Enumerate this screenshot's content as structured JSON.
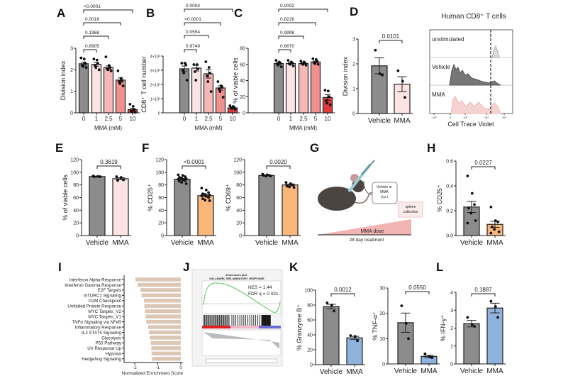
{
  "panel_letters": [
    "A",
    "B",
    "C",
    "D",
    "E",
    "F",
    "G",
    "H",
    "I",
    "J",
    "K",
    "L"
  ],
  "colors": {
    "vehicle": "#8c8c8c",
    "mma_pink": "#fde3e3",
    "mma_orange": "#f9b77a",
    "mma_blue": "#8fb3dc",
    "gsea_bar": "#dcc6b4",
    "dose": [
      "#8c8c8c",
      "#fde3e3",
      "#f8b7b7",
      "#f28f8f",
      "#e0393c"
    ]
  },
  "chart_data": [
    {
      "id": "A",
      "type": "bar",
      "ylabel": "Division index",
      "xlabel": "MMA (mM)",
      "categories": [
        "0",
        "1",
        "2.5",
        "5",
        "10"
      ],
      "ylim": [
        0,
        3
      ],
      "yticks": [
        0,
        1,
        2,
        3
      ],
      "ytick_labels": [
        "0",
        "1",
        "2",
        "3"
      ],
      "means": [
        2.28,
        2.25,
        2.1,
        1.52,
        0.15
      ],
      "sem": [
        0.08,
        0.08,
        0.08,
        0.1,
        0.06
      ],
      "points": [
        [
          2.55,
          2.5,
          2.3,
          2.2,
          2.15,
          2.1
        ],
        [
          2.5,
          2.45,
          2.3,
          2.2,
          2.1,
          2.0
        ],
        [
          2.6,
          2.2,
          2.1,
          2.05,
          2.0,
          1.95
        ],
        [
          1.95,
          1.6,
          1.5,
          1.45,
          1.35,
          1.25
        ],
        [
          0.4,
          0.3,
          0.15,
          0.1,
          0.05,
          0.02
        ]
      ],
      "comparisons": [
        {
          "from": 0,
          "to": 1,
          "p": "0.8905"
        },
        {
          "from": 0,
          "to": 2,
          "p": "0.1968"
        },
        {
          "from": 0,
          "to": 3,
          "p": "0.0016"
        },
        {
          "from": 0,
          "to": 4,
          "p": "<0.0001"
        }
      ]
    },
    {
      "id": "B",
      "type": "bar",
      "ylabel": "CD8⁺ T cell number",
      "xlabel": "MMA (mM)",
      "categories": [
        "0",
        "1",
        "2.5",
        "5",
        "10"
      ],
      "ylim": [
        0,
        4000
      ],
      "yticks": [
        0,
        1000,
        2000,
        3000,
        4000
      ],
      "ytick_labels": [
        "0",
        "1×10³",
        "2×10³",
        "3×10³",
        "4×10³"
      ],
      "means": [
        3100,
        3150,
        2750,
        1750,
        350
      ],
      "sem": [
        200,
        200,
        300,
        150,
        50
      ],
      "points": [
        [
          3500,
          3500,
          3400,
          3000,
          2800,
          2300
        ],
        [
          3400,
          3400,
          3100,
          2900,
          2300
        ],
        [
          3600,
          3200,
          2800,
          2600,
          2200,
          1500
        ],
        [
          2200,
          1900,
          1800,
          1700,
          1500,
          1100
        ],
        [
          500,
          450,
          400,
          350,
          300,
          250
        ]
      ],
      "comparisons": [
        {
          "from": 0,
          "to": 1,
          "p": "0.9749"
        },
        {
          "from": 0,
          "to": 2,
          "p": "0.0554"
        },
        {
          "from": 0,
          "to": 3,
          "p": "<0.0001"
        },
        {
          "from": 0,
          "to": 4,
          "p": "0.0004"
        }
      ]
    },
    {
      "id": "C",
      "type": "bar",
      "ylabel": "% of viable cells",
      "xlabel": "MMA (mM)",
      "categories": [
        "0",
        "1",
        "2.5",
        "5",
        "10"
      ],
      "ylim": [
        0,
        80
      ],
      "yticks": [
        0,
        20,
        40,
        60,
        80
      ],
      "ytick_labels": [
        "0",
        "20",
        "40",
        "60",
        "80"
      ],
      "means": [
        61,
        61,
        61,
        63,
        19
      ],
      "sem": [
        1.2,
        1.0,
        0.8,
        1.0,
        3.5
      ],
      "points": [
        [
          65,
          63,
          62,
          61,
          59,
          57
        ],
        [
          65,
          63,
          62,
          61,
          60,
          58
        ],
        [
          64,
          63,
          62,
          61,
          60,
          59
        ],
        [
          67,
          66,
          64,
          62,
          61,
          60
        ],
        [
          28,
          27,
          20,
          15,
          12,
          10
        ]
      ],
      "comparisons": [
        {
          "from": 0,
          "to": 1,
          "p": "0.6670"
        },
        {
          "from": 0,
          "to": 2,
          "p": "0.9998"
        },
        {
          "from": 0,
          "to": 3,
          "p": "0.8226"
        },
        {
          "from": 0,
          "to": 4,
          "p": "0.0002"
        }
      ]
    },
    {
      "id": "D",
      "type": "bar",
      "title": "Human CD8⁺ T cells",
      "ylabel": "Division index",
      "categories": [
        "Vehicle",
        "MMA"
      ],
      "ylim": [
        0,
        3
      ],
      "yticks": [
        0,
        1,
        2,
        3
      ],
      "ytick_labels": [
        "0",
        "1",
        "2",
        "3"
      ],
      "means": [
        1.92,
        1.18
      ],
      "sem": [
        0.32,
        0.3
      ],
      "points": [
        [
          2.55,
          1.6,
          1.55
        ],
        [
          1.72,
          1.3,
          0.65
        ]
      ],
      "comparisons": [
        {
          "from": 0,
          "to": 1,
          "p": "0.0101"
        }
      ]
    },
    {
      "id": "D-hist",
      "type": "area",
      "xlabel": "Cell Trace Violet",
      "rows": [
        "unstimulated",
        "Vehicle",
        "MMA"
      ],
      "xtick_labels": [
        "-10³",
        "0",
        "10³",
        "10⁴",
        "10⁵"
      ]
    },
    {
      "id": "E",
      "type": "bar",
      "ylabel": "% of viable cells",
      "categories": [
        "Vehicle",
        "MMA"
      ],
      "ylim": [
        0,
        120
      ],
      "yticks": [
        0,
        20,
        40,
        60,
        80,
        100,
        120
      ],
      "ytick_labels": [
        "0",
        "20",
        "40",
        "60",
        "80",
        "100",
        "120"
      ],
      "means": [
        93.3,
        89.8
      ],
      "sem": [
        0.5,
        1.5
      ],
      "points": [
        [
          94,
          93.5,
          93,
          93
        ],
        [
          93,
          92,
          88,
          87
        ]
      ],
      "comparisons": [
        {
          "from": 0,
          "to": 1,
          "p": "0.3619"
        }
      ]
    },
    {
      "id": "F1",
      "type": "bar",
      "ylabel": "% CD25⁺",
      "categories": [
        "Vehicle",
        "MMA"
      ],
      "ylim": [
        0,
        120
      ],
      "yticks": [
        0,
        20,
        40,
        60,
        80,
        100,
        120
      ],
      "ytick_labels": [
        "0",
        "20",
        "40",
        "60",
        "80",
        "100",
        "120"
      ],
      "means": [
        89,
        63
      ],
      "sem": [
        1.2,
        1.6
      ],
      "points": [
        [
          96,
          95,
          93,
          92,
          91,
          90,
          89,
          88,
          87,
          86,
          84,
          82
        ],
        [
          75,
          72,
          68,
          66,
          65,
          64,
          63,
          62,
          60,
          58,
          56,
          55
        ]
      ],
      "comparisons": [
        {
          "from": 0,
          "to": 1,
          "p": "<0.0001"
        }
      ]
    },
    {
      "id": "F2",
      "type": "bar",
      "ylabel": "% CD69⁺",
      "categories": [
        "Vehicle",
        "MMA"
      ],
      "ylim": [
        0,
        120
      ],
      "yticks": [
        0,
        20,
        40,
        60,
        80,
        100,
        120
      ],
      "ytick_labels": [
        "0",
        "20",
        "40",
        "60",
        "80",
        "100",
        "120"
      ],
      "means": [
        95,
        80
      ],
      "sem": [
        0.5,
        1.5
      ],
      "points": [
        [
          97,
          96,
          95,
          95,
          94,
          94
        ],
        [
          84,
          82,
          80,
          78,
          77,
          76
        ]
      ],
      "comparisons": [
        {
          "from": 0,
          "to": 1,
          "p": "0.0020"
        }
      ]
    },
    {
      "id": "H",
      "type": "bar",
      "ylabel": "% CD25⁺",
      "categories": [
        "Vehicle",
        "MMA"
      ],
      "ylim": [
        0,
        0.6
      ],
      "yticks": [
        0,
        0.2,
        0.4,
        0.6
      ],
      "ytick_labels": [
        "0.0",
        "0.2",
        "0.4",
        "0.6"
      ],
      "means": [
        0.23,
        0.09
      ],
      "sem": [
        0.045,
        0.025
      ],
      "points": [
        [
          0.48,
          0.34,
          0.25,
          0.22,
          0.18,
          0.12,
          0.1
        ],
        [
          0.23,
          0.12,
          0.11,
          0.07,
          0.05,
          0.03,
          0.02
        ]
      ],
      "comparisons": [
        {
          "from": 0,
          "to": 1,
          "p": "0.0227"
        }
      ]
    },
    {
      "id": "I",
      "type": "bar",
      "orientation": "horizontal",
      "xlabel": "Normalized Enrichment Score",
      "xlim": [
        -2.5,
        0
      ],
      "xticks": [
        -2,
        -1,
        0
      ],
      "xtick_labels": [
        "-2",
        "-1",
        "0"
      ],
      "categories": [
        "Interferon Alpha Response",
        "Interferon Gamma Response",
        "E2F Targets",
        "mTORC1 Signaling",
        "G2M Checkpoint",
        "Unfolded Protein Response",
        "MYC Targets_V2",
        "MYC Targets_V1",
        "TNFα Signaling via NFκB",
        "Inflammatory Response",
        "IL2 STAT5 Signaling",
        "Glycolysis",
        "P53 Pathway",
        "UV Response Up",
        "Hypoxia",
        "Hedgehog Signaling"
      ],
      "values": [
        -1.97,
        -1.87,
        -1.75,
        -1.7,
        -1.6,
        -1.58,
        -1.55,
        -1.52,
        -1.5,
        -1.42,
        -1.38,
        -1.35,
        -1.3,
        -1.28,
        -1.27,
        -1.25
      ]
    },
    {
      "id": "J",
      "type": "line",
      "title": "Enrichment plot:",
      "subtitle": "HALLMARK_INFLAMMATORY_RESPONSE",
      "annotations": [
        "NES = 1.44",
        "FDR q = 0.031"
      ]
    },
    {
      "id": "K1",
      "type": "bar",
      "ylabel": "% Granzyme B⁺",
      "categories": [
        "Vehicle",
        "MMA"
      ],
      "ylim": [
        0,
        100
      ],
      "yticks": [
        0,
        20,
        40,
        60,
        80,
        100
      ],
      "ytick_labels": [
        "0",
        "20",
        "40",
        "60",
        "80",
        "100"
      ],
      "means": [
        78,
        36
      ],
      "sem": [
        3,
        2
      ],
      "points": [
        [
          83,
          80,
          72
        ],
        [
          39,
          38,
          32
        ]
      ],
      "comparisons": [
        {
          "from": 0,
          "to": 1,
          "p": "0.0012"
        }
      ]
    },
    {
      "id": "K2",
      "type": "bar",
      "ylabel": "% TNF-α⁺",
      "categories": [
        "Vehicle",
        "MMA"
      ],
      "ylim": [
        0,
        30
      ],
      "yticks": [
        0,
        10,
        20,
        30
      ],
      "ytick_labels": [
        "0",
        "10",
        "20",
        "30"
      ],
      "means": [
        16.3,
        3
      ],
      "sem": [
        3.8,
        0.5
      ],
      "points": [
        [
          23,
          16,
          10
        ],
        [
          4,
          2.8,
          2.5
        ]
      ],
      "comparisons": [
        {
          "from": 0,
          "to": 1,
          "p": "0.0550"
        }
      ]
    },
    {
      "id": "L",
      "type": "bar",
      "ylabel": "% IFN-γ⁺",
      "categories": [
        "Vehicle",
        "MMA"
      ],
      "ylim": [
        0,
        4
      ],
      "yticks": [
        0,
        1,
        2,
        3,
        4
      ],
      "ytick_labels": [
        "0",
        "1",
        "2",
        "3",
        "4"
      ],
      "means": [
        2.25,
        3.12
      ],
      "sem": [
        0.18,
        0.27
      ],
      "points": [
        [
          2.6,
          2.2,
          2.1
        ],
        [
          3.5,
          3.2,
          2.6
        ]
      ],
      "comparisons": [
        {
          "from": 0,
          "to": 1,
          "p": "0.1887"
        }
      ]
    }
  ],
  "schematic": {
    "injection_label": [
      "Vehicle or",
      "MMA",
      "(i.p.)"
    ],
    "endpoint_label": [
      "spleen",
      "collection"
    ],
    "dose_label": "MMA dose",
    "duration_label": "28 day treatment"
  }
}
